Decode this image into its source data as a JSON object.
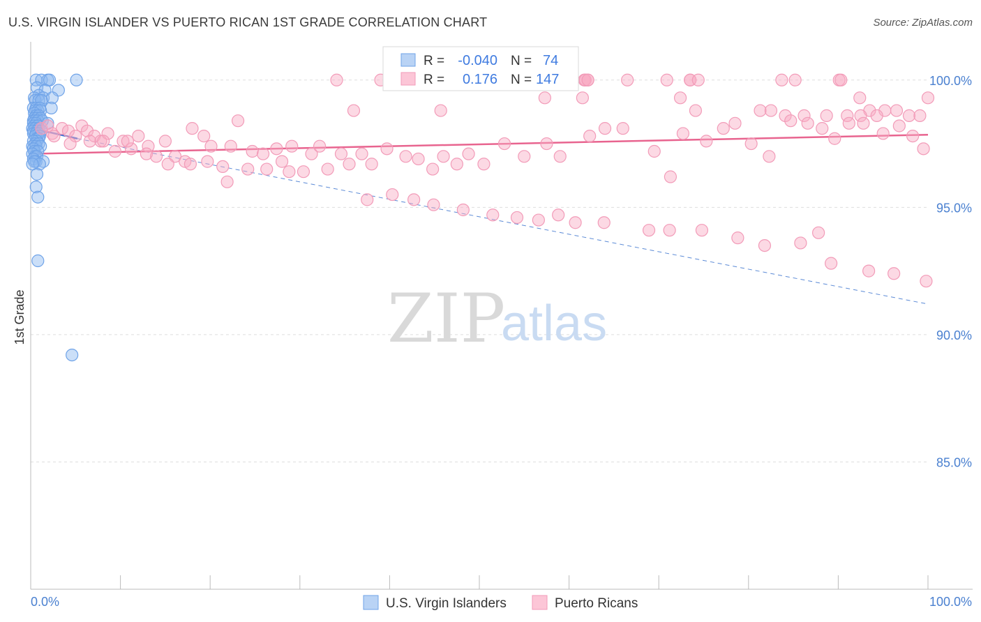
{
  "header": {
    "title": "U.S. VIRGIN ISLANDER VS PUERTO RICAN 1ST GRADE CORRELATION CHART",
    "source": "Source: ZipAtlas.com"
  },
  "watermark": {
    "zip": "ZIP",
    "atlas": "atlas"
  },
  "colors": {
    "blue": "#6fa3e8",
    "pink": "#f29bb8",
    "blue_line": "#3c6fd1",
    "pink_line": "#e8648f",
    "tick": "#4a80d0"
  },
  "legend": {
    "r_label": "R =",
    "n_label": "N =",
    "rows": [
      {
        "series": "blue",
        "r": "-0.040",
        "n": "74"
      },
      {
        "series": "pink",
        "r": "0.176",
        "n": "147"
      }
    ]
  },
  "chart_data": {
    "type": "scatter",
    "title": "U.S. VIRGIN ISLANDER VS PUERTO RICAN 1ST GRADE CORRELATION CHART",
    "xlabel": "",
    "ylabel": "1st Grade",
    "xlim": [
      0,
      100
    ],
    "ylim": [
      80,
      101.5
    ],
    "y_ticks": [
      {
        "value": 100,
        "label": "100.0%"
      },
      {
        "value": 95,
        "label": "95.0%"
      },
      {
        "value": 90,
        "label": "90.0%"
      },
      {
        "value": 85,
        "label": "85.0%"
      }
    ],
    "x_tick_labels": {
      "min": "0.0%",
      "max": "100.0%"
    },
    "series": [
      {
        "name": "U.S. Virgin Islanders",
        "color": "#6fa3e8",
        "r": -0.04,
        "n": 74,
        "trend": {
          "x": [
            0.2,
            5.2
          ],
          "y": [
            98.1,
            97.7
          ]
        },
        "trend_ext": {
          "x": [
            5.2,
            100
          ],
          "y": [
            97.7,
            91.2
          ]
        },
        "x": [
          0.6,
          1.2,
          1.9,
          2.1,
          5.1,
          0.7,
          1.6,
          3.1,
          0.9,
          1.4,
          2.4,
          0.4,
          0.5,
          0.9,
          1.2,
          2.3,
          0.3,
          0.6,
          1.0,
          0.5,
          0.8,
          1.1,
          0.4,
          0.6,
          0.9,
          0.4,
          0.7,
          1.1,
          0.3,
          0.5,
          0.8,
          1.3,
          0.3,
          0.6,
          1.9,
          0.4,
          0.8,
          0.2,
          0.5,
          0.9,
          0.3,
          0.7,
          1.2,
          0.3,
          0.6,
          0.9,
          0.5,
          1.0,
          0.7,
          0.9,
          0.7,
          0.3,
          0.5,
          0.9,
          0.2,
          0.6,
          1.1,
          0.3,
          0.4,
          0.8,
          0.2,
          0.5,
          0.7,
          0.3,
          0.6,
          1.4,
          0.4,
          1.0,
          0.2,
          0.7,
          0.6,
          0.8,
          0.8,
          4.6
        ],
        "y": [
          100.0,
          100.0,
          100.0,
          100.0,
          100.0,
          99.7,
          99.6,
          99.6,
          99.4,
          99.3,
          99.3,
          99.3,
          99.2,
          99.2,
          99.2,
          98.9,
          98.9,
          98.9,
          98.9,
          98.8,
          98.8,
          98.8,
          98.7,
          98.6,
          98.6,
          98.5,
          98.5,
          98.5,
          98.4,
          98.4,
          98.4,
          98.4,
          98.3,
          98.3,
          98.3,
          98.2,
          98.2,
          98.1,
          98.1,
          98.1,
          98.0,
          98.0,
          98.0,
          97.9,
          97.9,
          97.9,
          97.8,
          97.8,
          97.7,
          97.7,
          97.6,
          97.6,
          97.5,
          97.5,
          97.4,
          97.4,
          97.4,
          97.3,
          97.2,
          97.2,
          97.1,
          97.0,
          97.0,
          96.9,
          96.8,
          96.8,
          96.8,
          96.7,
          96.7,
          96.3,
          95.8,
          95.4,
          92.9,
          89.2
        ]
      },
      {
        "name": "Puerto Ricans",
        "color": "#f29bb8",
        "r": 0.176,
        "n": 147,
        "trend": {
          "x": [
            0,
            100
          ],
          "y": [
            97.1,
            97.85
          ]
        },
        "x": [
          34.1,
          39.0,
          40.0,
          53.5,
          53.2,
          61.8,
          61.7,
          61.8,
          62.1,
          62.1,
          66.5,
          70.9,
          73.5,
          73.5,
          74.4,
          85.2,
          83.7,
          90.1,
          90.3,
          57.3,
          61.5,
          72.4,
          92.4,
          100.0,
          36.0,
          45.7,
          74.1,
          81.3,
          82.5,
          93.5,
          95.2,
          96.5,
          84.1,
          86.2,
          88.7,
          91.0,
          92.5,
          94.3,
          97.9,
          99.1,
          1.2,
          1.9,
          2.4,
          3.5,
          4.2,
          5.0,
          5.7,
          6.3,
          7.1,
          7.8,
          8.6,
          9.4,
          10.3,
          11.2,
          12.0,
          13.1,
          14.0,
          15.0,
          16.1,
          17.2,
          18.0,
          19.3,
          20.1,
          21.4,
          22.3,
          23.1,
          24.7,
          25.9,
          27.4,
          28.0,
          29.1,
          31.3,
          32.2,
          34.6,
          35.5,
          36.9,
          38.0,
          39.7,
          41.8,
          43.2,
          44.8,
          46.0,
          47.5,
          48.8,
          50.5,
          52.8,
          55.0,
          57.5,
          59.0,
          62.3,
          64.0,
          66.0,
          69.5,
          71.3,
          72.7,
          75.3,
          77.2,
          78.5,
          80.3,
          82.3,
          84.7,
          86.6,
          88.2,
          89.6,
          91.2,
          92.8,
          95.0,
          96.8,
          98.3,
          99.5,
          2.6,
          4.4,
          6.6,
          8.1,
          10.8,
          12.9,
          15.3,
          17.8,
          19.7,
          21.9,
          24.2,
          26.3,
          28.8,
          30.4,
          33.1,
          37.5,
          40.3,
          42.7,
          44.9,
          48.2,
          51.5,
          54.2,
          56.6,
          58.8,
          60.7,
          63.9,
          68.9,
          71.2,
          74.8,
          78.8,
          81.8,
          85.8,
          87.8,
          89.2,
          93.4,
          96.2,
          99.8
        ],
        "y": [
          100.0,
          100.0,
          100.0,
          100.0,
          100.0,
          100.0,
          100.0,
          100.0,
          100.0,
          100.0,
          100.0,
          100.0,
          100.0,
          100.0,
          100.0,
          100.0,
          100.0,
          100.0,
          100.0,
          99.3,
          99.3,
          99.3,
          99.3,
          99.3,
          98.8,
          98.8,
          98.8,
          98.8,
          98.8,
          98.8,
          98.8,
          98.8,
          98.6,
          98.6,
          98.6,
          98.6,
          98.6,
          98.6,
          98.6,
          98.6,
          98.1,
          98.2,
          97.9,
          98.1,
          98.0,
          97.8,
          98.2,
          98.0,
          97.8,
          97.6,
          97.9,
          97.2,
          97.6,
          97.3,
          97.8,
          97.4,
          97.0,
          97.6,
          97.0,
          96.8,
          98.1,
          97.8,
          97.4,
          96.6,
          97.4,
          98.4,
          97.2,
          97.1,
          97.3,
          96.8,
          97.4,
          97.1,
          97.4,
          97.1,
          96.7,
          97.1,
          96.7,
          97.3,
          97.0,
          96.9,
          96.5,
          97.0,
          96.7,
          97.1,
          96.7,
          97.5,
          97.0,
          97.5,
          97.0,
          97.8,
          98.1,
          98.1,
          97.2,
          96.2,
          97.9,
          97.6,
          98.1,
          98.3,
          97.5,
          97.0,
          98.4,
          98.3,
          98.1,
          97.7,
          98.3,
          98.3,
          97.9,
          98.2,
          97.8,
          97.3,
          97.8,
          97.5,
          97.6,
          97.6,
          97.6,
          97.1,
          96.7,
          96.7,
          96.8,
          96.0,
          96.5,
          96.5,
          96.4,
          96.4,
          96.5,
          95.3,
          95.5,
          95.3,
          95.1,
          94.9,
          94.7,
          94.6,
          94.5,
          94.7,
          94.4,
          94.4,
          94.1,
          94.1,
          94.1,
          93.8,
          93.5,
          93.6,
          94.0,
          92.8,
          92.5,
          92.4,
          92.1
        ]
      }
    ]
  },
  "bottom_legend": [
    {
      "label": "U.S. Virgin Islanders"
    },
    {
      "label": "Puerto Ricans"
    }
  ]
}
